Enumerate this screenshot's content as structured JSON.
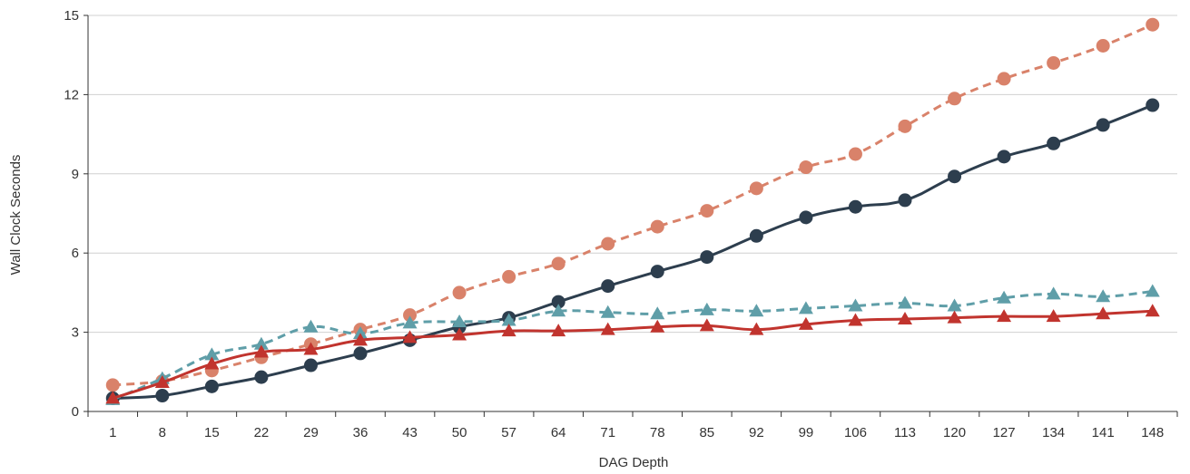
{
  "chart_data": {
    "type": "line",
    "title": "",
    "xlabel": "DAG Depth",
    "ylabel": "Wall Clock Seconds",
    "ylim": [
      0,
      15
    ],
    "yticks": [
      0,
      3,
      6,
      9,
      12,
      15
    ],
    "grid": "horizontal",
    "categories": [
      "1",
      "8",
      "15",
      "22",
      "29",
      "36",
      "43",
      "50",
      "57",
      "64",
      "71",
      "78",
      "85",
      "92",
      "99",
      "106",
      "113",
      "120",
      "127",
      "134",
      "141",
      "148"
    ],
    "series": [
      {
        "color": "#d9826a",
        "marker": "circle",
        "line": "dashed",
        "values": [
          1.0,
          1.15,
          1.55,
          2.05,
          2.55,
          3.1,
          3.65,
          4.5,
          5.1,
          5.6,
          6.35,
          7.0,
          7.6,
          8.45,
          9.25,
          9.75,
          10.8,
          11.85,
          12.6,
          13.2,
          13.85,
          14.65
        ]
      },
      {
        "color": "#2d3e4e",
        "marker": "circle",
        "line": "solid",
        "values": [
          0.5,
          0.6,
          0.95,
          1.3,
          1.75,
          2.2,
          2.7,
          3.2,
          3.55,
          4.15,
          4.75,
          5.3,
          5.85,
          6.65,
          7.35,
          7.75,
          8.0,
          8.9,
          9.65,
          10.15,
          10.85,
          11.6
        ]
      },
      {
        "color": "#5f9ea8",
        "marker": "triangle",
        "line": "dashed",
        "values": [
          0.45,
          1.25,
          2.15,
          2.55,
          3.2,
          2.95,
          3.35,
          3.4,
          3.45,
          3.8,
          3.75,
          3.7,
          3.85,
          3.8,
          3.9,
          4.0,
          4.1,
          4.0,
          4.3,
          4.45,
          4.35,
          4.55
        ]
      },
      {
        "color": "#c1342e",
        "marker": "triangle",
        "line": "solid",
        "values": [
          0.5,
          1.1,
          1.8,
          2.25,
          2.35,
          2.7,
          2.8,
          2.9,
          3.05,
          3.05,
          3.1,
          3.2,
          3.25,
          3.1,
          3.3,
          3.45,
          3.5,
          3.55,
          3.6,
          3.6,
          3.7,
          3.8
        ]
      }
    ]
  }
}
